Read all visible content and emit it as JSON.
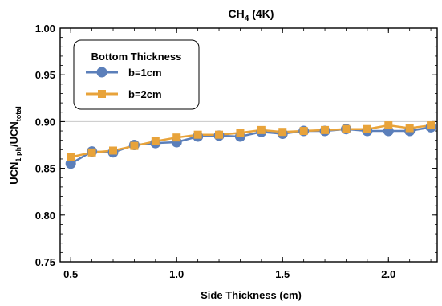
{
  "chart_data": {
    "type": "line",
    "title": "CH",
    "title_sub": "4",
    "title_suffix": " (4K)",
    "xlabel": "Side Thickness (cm)",
    "ylabel_parts": [
      "UCN",
      "1 ph",
      "/UCN",
      "total"
    ],
    "xlim": [
      0.45,
      2.23
    ],
    "ylim": [
      0.75,
      1.0
    ],
    "x_ticks": [
      0.5,
      1.0,
      1.5,
      2.0
    ],
    "x_tick_labels": [
      "0.5",
      "1.0",
      "1.5",
      "2.0"
    ],
    "y_ticks": [
      0.75,
      0.8,
      0.85,
      0.9,
      0.95,
      1.0
    ],
    "y_tick_labels": [
      "0.75",
      "0.80",
      "0.85",
      "0.90",
      "0.95",
      "1.00"
    ],
    "grid": "horizontal line at 0.90",
    "legend": {
      "title": "Bottom Thickness",
      "placement": "top-left"
    },
    "x": [
      0.5,
      0.6,
      0.7,
      0.8,
      0.9,
      1.0,
      1.1,
      1.2,
      1.3,
      1.4,
      1.5,
      1.6,
      1.7,
      1.8,
      1.9,
      2.0,
      2.1,
      2.2
    ],
    "series": [
      {
        "name": "b=1cm",
        "color": "#5b7fba",
        "marker": "circle",
        "values": [
          0.855,
          0.868,
          0.867,
          0.875,
          0.877,
          0.878,
          0.884,
          0.885,
          0.884,
          0.889,
          0.887,
          0.89,
          0.89,
          0.892,
          0.89,
          0.89,
          0.89,
          0.894
        ]
      },
      {
        "name": "b=2cm",
        "color": "#e8a33a",
        "marker": "square",
        "values": [
          0.862,
          0.867,
          0.869,
          0.874,
          0.879,
          0.883,
          0.886,
          0.886,
          0.888,
          0.891,
          0.889,
          0.89,
          0.891,
          0.892,
          0.892,
          0.896,
          0.893,
          0.896
        ]
      }
    ]
  }
}
